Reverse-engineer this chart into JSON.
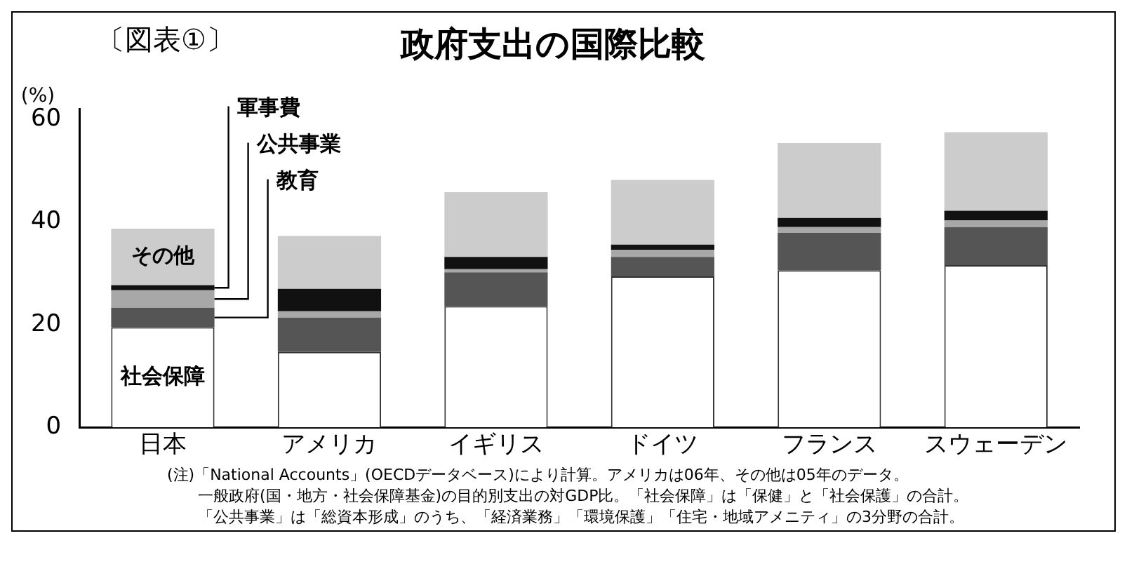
{
  "chart_data": {
    "type": "bar",
    "title": "政府支出の国際比較",
    "ylabel": "(%)",
    "annotations": [
      "〔図表①〕",
      "(注)「National Accounts」(OECDデータベース)により計算。アメリカは06年、その他は05年のデータ。",
      "一般政府(国・地方・社会保障基金)の目的別支出の対GDP比。「社会保障」は「保健」と「社会保護」の合計。",
      "「公共事業」は「総資本形成」のうち、「経済業務」「環境保護」「住宅・地域アメニティ」の3分野の合計。"
    ],
    "categories": [
      "日本",
      "アメリカ",
      "イギリス",
      "ドイツ",
      "フランス",
      "スウェーデン"
    ],
    "stacked": true,
    "series": [
      {
        "name": "社会保障",
        "color": "#ffffff",
        "values": [
          19.5,
          14.7,
          23.6,
          29.4,
          30.6,
          31.6
        ]
      },
      {
        "name": "教育",
        "color": "#555555",
        "values": [
          3.8,
          6.7,
          6.6,
          3.8,
          7.3,
          7.4
        ]
      },
      {
        "name": "公共事業",
        "color": "#a8a8a8",
        "values": [
          3.4,
          1.2,
          0.6,
          1.4,
          1.1,
          1.3
        ]
      },
      {
        "name": "軍事費",
        "color": "#111111",
        "values": [
          1.0,
          4.4,
          2.4,
          1.0,
          1.8,
          1.9
        ]
      },
      {
        "name": "その他",
        "color": "#cccccc",
        "values": [
          11.0,
          10.3,
          12.6,
          12.6,
          14.6,
          15.3
        ]
      }
    ],
    "ylim": [
      0,
      62
    ],
    "yticks": [
      0,
      20,
      40,
      60
    ],
    "grid": false,
    "legend": false
  }
}
